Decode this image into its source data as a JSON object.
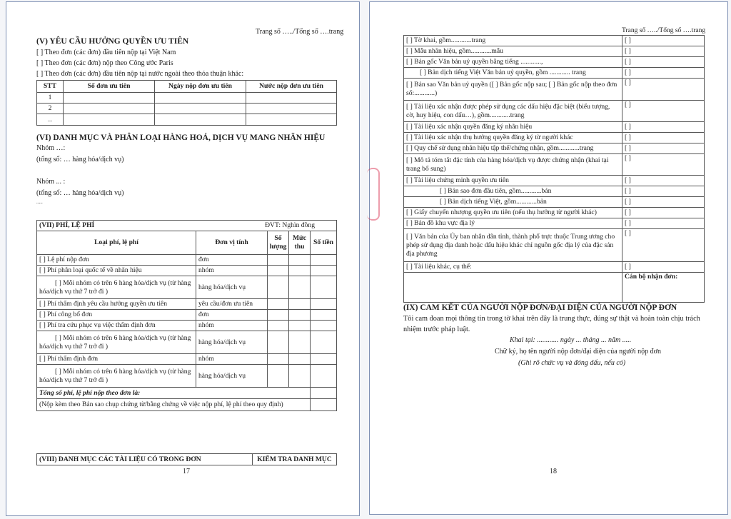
{
  "page_left": {
    "page_counter": "Trang số …../Tổng số ….trang",
    "section_v": {
      "title": "(V) YÊU CẦU HƯỞNG QUYỀN ƯU TIÊN",
      "options": [
        "[ ] Theo đơn (các đơn) đầu tiên nộp tại Việt Nam",
        "[ ] Theo đơn (các đơn) nộp theo Công ước Paris",
        "[ ] Theo đơn (các đơn) đầu tiên nộp tại nước ngoài theo thỏa thuận khác:"
      ],
      "headers": [
        "STT",
        "Số đơn ưu tiên",
        "Ngày nộp đơn ưu tiên",
        "Nước nộp đơn ưu tiên"
      ],
      "rows": [
        "1",
        "2",
        "...."
      ]
    },
    "section_vi": {
      "title": "(VI) DANH MỤC VÀ PHÂN LOẠI HÀNG HOÁ, DỊCH VỤ MANG NHÃN HIỆU",
      "group1": "Nhóm …:",
      "total1": "(tổng số: … hàng hóa/dịch vụ)",
      "group2": "Nhóm ... :",
      "total2": "(tổng số: … hàng hóa/dịch vụ)",
      "more": "....."
    },
    "section_vii": {
      "title": "(VII) PHÍ, LỆ PHÍ",
      "unit_note": "ĐVT: Nghìn đồng",
      "headers": [
        "Loại phí, lệ phí",
        "Đơn vị tính",
        "Số lượng",
        "Mức thu",
        "Số tiền"
      ],
      "rows": [
        {
          "type": "[ ] Lệ phí nộp đơn",
          "unit": "đơn"
        },
        {
          "type": "[ ] Phí phân loại quốc tế về nhãn hiệu",
          "unit": "nhóm"
        },
        {
          "type": "[ ] Mỗi nhóm có trên 6 hàng hóa/dịch vụ (từ hàng hóa/dịch vụ thứ 7 trở đi )",
          "unit": "hàng hóa/dịch vụ"
        },
        {
          "type": "[ ] Phí thẩm định yêu cầu hưởng quyền ưu tiên",
          "unit": "yêu cầu/đơn ưu tiên"
        },
        {
          "type": "[ ] Phí công bố đơn",
          "unit": "đơn"
        },
        {
          "type": "[ ] Phí tra cứu phục vụ việc thẩm định đơn",
          "unit": "nhóm"
        },
        {
          "type": "[ ] Mỗi nhóm có trên 6 hàng hóa/dịch vụ (từ hàng hóa/dịch vụ thứ 7 trở đi )",
          "unit": "hàng hóa/dịch vụ"
        },
        {
          "type": "[ ] Phí thẩm định đơn",
          "unit": "nhóm"
        },
        {
          "type": "[ ] Mỗi nhóm có trên 6 hàng hóa/dịch vụ (từ hàng hóa/dịch vụ thứ 7 trở đi )",
          "unit": "hàng hóa/dịch vụ"
        }
      ],
      "total_label": "Tổng số phí, lệ phí nộp theo đơn là:",
      "note": "(Nộp kèm theo Bản sao chụp chứng từ/bằng chứng về việc nộp phí, lệ phí theo quy định)"
    },
    "section_viii": {
      "title": "(VIII) DANH MỤC CÁC TÀI LIỆU CÓ TRONG ĐƠN",
      "check_label": "KIỂM TRA DANH MỤC"
    },
    "page_number": "17"
  },
  "page_right": {
    "page_counter": "Trang số …../Tổng số ….trang",
    "documents": [
      {
        "label": "[ ] Tờ khai, gồm............trang",
        "check": "[ ]"
      },
      {
        "label": "[ ] Mẫu nhãn hiệu, gồm............mẫu",
        "check": "[ ]"
      },
      {
        "label": "[ ] Bản gốc Văn bản uỷ quyền bằng tiếng ............,",
        "check": "[ ]"
      },
      {
        "label": "[ ] Bản dịch tiếng Việt Văn bản uỷ quyền, gồm ............ trang",
        "check": "[ ]"
      },
      {
        "label": "[ ] Bản sao Văn bản uỷ quyền ([ ] Bản gốc nộp sau; [ ] Bản gốc nộp theo đơn số:............)",
        "check": "[ ]"
      },
      {
        "label": "[ ] Tài liệu xác nhận được phép sử dụng các dấu hiệu đặc biệt (biểu tượng, cờ, huy hiệu, con dấu…), gồm............trang",
        "check": "[ ]"
      },
      {
        "label": "[ ] Tài liệu xác nhận quyền đăng ký nhãn hiệu",
        "check": "[ ]"
      },
      {
        "label": "[ ] Tài liệu xác nhận thụ hưởng quyền đăng ký từ người khác",
        "check": "[ ]"
      },
      {
        "label": "[ ] Quy chế sử dụng nhãn hiệu tập thể/chứng nhận, gồm............trang",
        "check": "[ ]"
      },
      {
        "label": "[ ] Mô tả tóm tắt đặc tính của hàng hóa/dịch vụ được chứng nhận (khai tại trang bổ sung)",
        "check": "[ ]"
      },
      {
        "label": "[ ] Tài liệu chứng minh quyền ưu tiên",
        "check": "[ ]"
      },
      {
        "label": "[ ] Bản sao đơn đầu tiên, gồm............bản",
        "check": "[ ]"
      },
      {
        "label": "[ ] Bản dịch tiếng Việt, gồm............bản",
        "check": "[ ]"
      },
      {
        "label": "[ ] Giấy chuyển nhượng quyền ưu tiên (nếu thụ hưởng từ người khác)",
        "check": "[ ]"
      },
      {
        "label": "[ ] Bản đồ khu vực địa lý",
        "check": "[ ]"
      },
      {
        "label": "[ ] Văn bản của Ủy ban nhân dân tỉnh, thành phố trực thuộc Trung ương cho phép sử dụng địa danh hoặc dấu hiệu khác chỉ nguồn gốc địa lý của đặc sản địa phương",
        "check": "[ ]"
      },
      {
        "label": "[ ] Tài liệu khác, cụ thể:",
        "check": "[ ]"
      }
    ],
    "receiver_label": "Cán bộ nhận đơn:",
    "section_ix": {
      "title": "(IX) CAM KẾT CỦA NGƯỜI NỘP ĐƠN/ĐẠI DIỆN CỦA NGƯỜI NỘP ĐƠN",
      "statement": "Tôi cam đoan mọi thông tin trong tờ khai trên đây là trung thực, đúng sự thật và hoàn toàn chịu trách nhiệm trước pháp luật.",
      "place_date": "Khai tại: ............ ngày ... tháng ... năm .....",
      "signature": "Chữ ký, họ tên người nộp đơn/đại diện của người nộp đơn",
      "signature_note": "(Ghi rõ chức vụ và đóng dấu, nếu có)"
    },
    "page_number": "18"
  }
}
